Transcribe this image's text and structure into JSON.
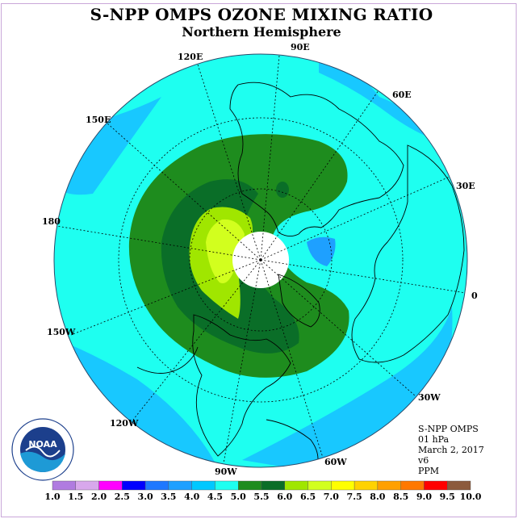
{
  "title": "S-NPP OMPS OZONE MIXING RATIO",
  "subtitle": "Northern Hemisphere",
  "longitude_labels": [
    "90E",
    "60E",
    "30E",
    "0",
    "30W",
    "60W",
    "90W",
    "120W",
    "150W",
    "180",
    "150E",
    "120E"
  ],
  "info": {
    "instrument": "S-NPP OMPS",
    "level": "01 hPa",
    "date": "March 2, 2017",
    "version": "v6",
    "units": "PPM"
  },
  "colorbar": {
    "ticks": [
      "1.0",
      "1.5",
      "2.0",
      "2.5",
      "3.0",
      "3.5",
      "4.0",
      "4.5",
      "5.0",
      "5.5",
      "6.0",
      "6.5",
      "7.0",
      "7.5",
      "8.0",
      "8.5",
      "9.0",
      "9.5",
      "10.0"
    ],
    "colors": [
      "#b07be0",
      "#d8a8ec",
      "#ff00ff",
      "#0000ff",
      "#1e78ff",
      "#1ea0ff",
      "#00c8ff",
      "#1efff0",
      "#1e8c1e",
      "#0a6e28",
      "#a0e600",
      "#d2ff1e",
      "#ffff00",
      "#ffd200",
      "#ffa000",
      "#ff7800",
      "#ff0000",
      "#8c5a3c"
    ]
  },
  "logo": {
    "text": "NOAA"
  }
}
